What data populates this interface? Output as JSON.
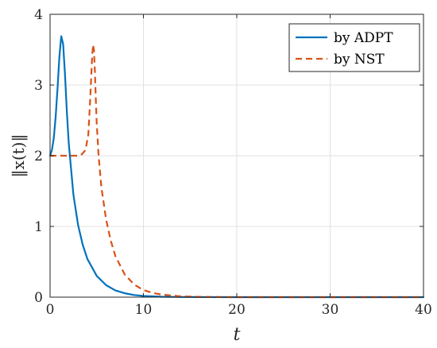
{
  "chart_data": {
    "type": "line",
    "xlabel": "t",
    "ylabel": "‖x(t)‖",
    "xlim": [
      0,
      40
    ],
    "ylim": [
      0,
      4
    ],
    "x_ticks": [
      0,
      10,
      20,
      30,
      40
    ],
    "y_ticks": [
      0,
      1,
      2,
      3,
      4
    ],
    "grid": true,
    "legend_position": "top-right",
    "series": [
      {
        "name": "by ADPT",
        "color": "#0072BD",
        "style": "solid",
        "x": [
          0,
          0.2,
          0.4,
          0.6,
          0.8,
          1.0,
          1.2,
          1.4,
          1.6,
          1.8,
          2.0,
          2.5,
          3.0,
          3.5,
          4.0,
          5.0,
          6.0,
          7.0,
          8.0,
          9.0,
          10.0,
          12.0,
          14.0,
          16.0,
          20.0,
          25.0,
          30.0,
          40.0
        ],
        "y": [
          2.0,
          2.08,
          2.25,
          2.55,
          2.95,
          3.4,
          3.69,
          3.58,
          3.15,
          2.62,
          2.18,
          1.45,
          1.02,
          0.74,
          0.54,
          0.3,
          0.17,
          0.095,
          0.055,
          0.03,
          0.017,
          0.006,
          0.002,
          0.001,
          0.0,
          0.0,
          0.0,
          0.0
        ]
      },
      {
        "name": "by NST",
        "color": "#D95319",
        "style": "dashed",
        "x": [
          0,
          1.0,
          2.0,
          3.0,
          3.4,
          3.8,
          4.1,
          4.3,
          4.5,
          4.6,
          4.7,
          4.8,
          4.9,
          5.0,
          5.2,
          5.5,
          6.0,
          6.5,
          7.0,
          8.0,
          9.0,
          10.0,
          11.0,
          12.0,
          14.0,
          16.0,
          18.0,
          20.0,
          25.0,
          30.0,
          40.0
        ],
        "y": [
          2.0,
          2.0,
          2.0,
          2.0,
          2.02,
          2.08,
          2.3,
          2.8,
          3.38,
          3.57,
          3.5,
          3.2,
          2.8,
          2.45,
          2.0,
          1.55,
          1.1,
          0.8,
          0.58,
          0.32,
          0.18,
          0.1,
          0.06,
          0.035,
          0.012,
          0.004,
          0.001,
          0.0,
          0.0,
          0.0,
          0.0
        ]
      }
    ]
  }
}
